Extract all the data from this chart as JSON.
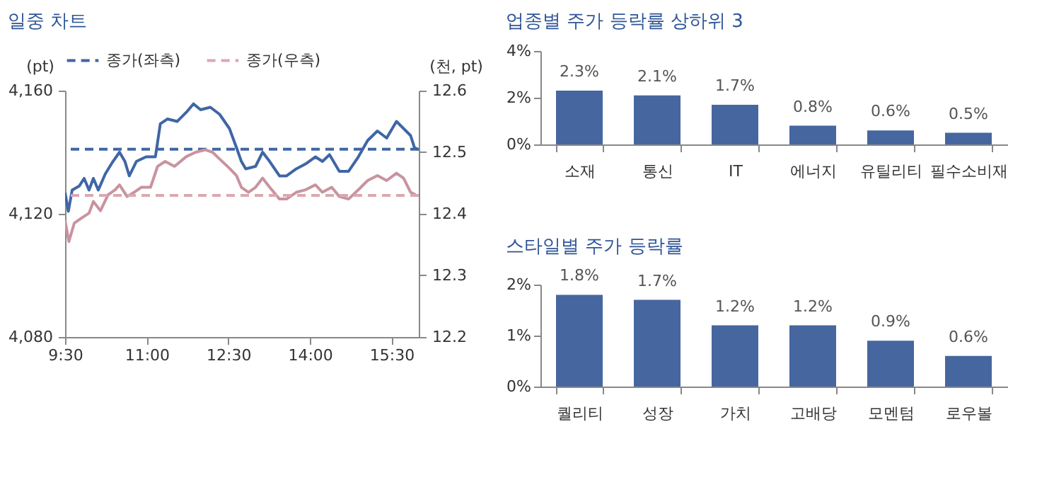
{
  "chart_data": [
    {
      "type": "line",
      "title": "일중 차트",
      "ylabel": "(pt)",
      "y2label": "(천, pt)",
      "xlim": [
        9.5,
        16
      ],
      "xticks": [
        {
          "value": 9.5,
          "label": "9:30"
        },
        {
          "value": 11,
          "label": "11:00"
        },
        {
          "value": 12.5,
          "label": "12:30"
        },
        {
          "value": 14,
          "label": "14:00"
        },
        {
          "value": 15.5,
          "label": "15:30"
        }
      ],
      "ylim": [
        4080,
        4160
      ],
      "yticks": [
        {
          "value": 4080,
          "label": "4,080"
        },
        {
          "value": 4120,
          "label": "4,120"
        },
        {
          "value": 4160,
          "label": "4,160"
        }
      ],
      "y2lim": [
        12.2,
        12.6
      ],
      "y2ticks": [
        12.2,
        12.3,
        12.4,
        12.5,
        12.6
      ],
      "series": [
        {
          "type": "line",
          "axis": "y",
          "color": "#3f66a5",
          "x": [
            9.5,
            9.56,
            9.63,
            9.76,
            9.85,
            9.94,
            10.02,
            10.11,
            10.24,
            10.38,
            10.5,
            10.6,
            10.68,
            10.81,
            10.99,
            11.16,
            11.25,
            11.38,
            11.56,
            11.73,
            11.86,
            11.99,
            12.17,
            12.34,
            12.52,
            12.65,
            12.74,
            12.82,
            13.0,
            13.13,
            13.26,
            13.44,
            13.57,
            13.75,
            13.92,
            14.1,
            14.23,
            14.36,
            14.54,
            14.71,
            14.89,
            15.06,
            15.24,
            15.41,
            15.59,
            15.72,
            15.85,
            15.92,
            16.0
          ],
          "values": [
            4126.9,
            4120.8,
            4127.7,
            4129,
            4131.5,
            4127.7,
            4131.5,
            4127.7,
            4133,
            4137,
            4140,
            4137,
            4132.3,
            4137,
            4138.5,
            4138.5,
            4149.2,
            4150.8,
            4150,
            4153,
            4155.7,
            4153.8,
            4154.6,
            4152.3,
            4147.7,
            4141.5,
            4137,
            4134.6,
            4135.4,
            4140,
            4137,
            4132.3,
            4132.3,
            4134.6,
            4136.2,
            4138.5,
            4137,
            4139.2,
            4133.8,
            4133.8,
            4138.5,
            4143.8,
            4146.9,
            4144.6,
            4150,
            4147.7,
            4145.4,
            4141.5,
            4140.8
          ]
        },
        {
          "type": "line",
          "axis": "y2",
          "color": "#c8939f",
          "x": [
            9.5,
            9.57,
            9.67,
            9.8,
            9.94,
            10.02,
            10.15,
            10.29,
            10.42,
            10.5,
            10.64,
            10.77,
            10.9,
            11.07,
            11.2,
            11.34,
            11.51,
            11.73,
            11.9,
            12.08,
            12.21,
            12.34,
            12.52,
            12.65,
            12.74,
            12.87,
            13.0,
            13.13,
            13.26,
            13.44,
            13.57,
            13.75,
            13.92,
            14.1,
            14.23,
            14.4,
            14.54,
            14.71,
            14.89,
            15.06,
            15.24,
            15.41,
            15.59,
            15.72,
            15.85,
            15.94
          ],
          "values": [
            12.389,
            12.355,
            12.385,
            12.393,
            12.401,
            12.42,
            12.405,
            12.431,
            12.439,
            12.447,
            12.428,
            12.435,
            12.443,
            12.443,
            12.477,
            12.485,
            12.477,
            12.493,
            12.5,
            12.504,
            12.5,
            12.489,
            12.474,
            12.462,
            12.443,
            12.435,
            12.443,
            12.458,
            12.443,
            12.424,
            12.424,
            12.435,
            12.439,
            12.447,
            12.435,
            12.443,
            12.428,
            12.424,
            12.439,
            12.454,
            12.462,
            12.454,
            12.466,
            12.458,
            12.435,
            12.431
          ]
        }
      ],
      "ref_lines": [
        {
          "axis": "y",
          "value": 4141,
          "label": "종가(좌측)",
          "color": "#3f66a5",
          "line_style": "dashed"
        },
        {
          "axis": "y2",
          "value": 12.43,
          "label": "종가(우측)",
          "color": "#dba8b2",
          "line_style": "dashed"
        }
      ],
      "legend": "top"
    },
    {
      "type": "bar",
      "title": "업종별 주가 등락률 상하위 3",
      "categories": [
        "소재",
        "통신",
        "IT",
        "에너지",
        "유틸리티",
        "필수소비재"
      ],
      "values": [
        2.3,
        2.1,
        1.7,
        0.8,
        0.6,
        0.5
      ],
      "value_labels": [
        "2.3%",
        "2.1%",
        "1.7%",
        "0.8%",
        "0.6%",
        "0.5%"
      ],
      "color": "#46669f",
      "ylim": [
        0,
        4
      ],
      "yticks": [
        {
          "value": 0,
          "label": "0%"
        },
        {
          "value": 2,
          "label": "2%"
        },
        {
          "value": 4,
          "label": "4%"
        }
      ]
    },
    {
      "type": "bar",
      "title": "스타일별 주가 등락률",
      "categories": [
        "퀄리티",
        "성장",
        "가치",
        "고배당",
        "모멘텀",
        "로우볼"
      ],
      "values": [
        1.8,
        1.7,
        1.2,
        1.2,
        0.9,
        0.6
      ],
      "value_labels": [
        "1.8%",
        "1.7%",
        "1.2%",
        "1.2%",
        "0.9%",
        "0.6%"
      ],
      "color": "#46669f",
      "ylim": [
        0,
        2
      ],
      "yticks": [
        {
          "value": 0,
          "label": "0%"
        },
        {
          "value": 1,
          "label": "1%"
        },
        {
          "value": 2,
          "label": "2%"
        }
      ]
    }
  ]
}
